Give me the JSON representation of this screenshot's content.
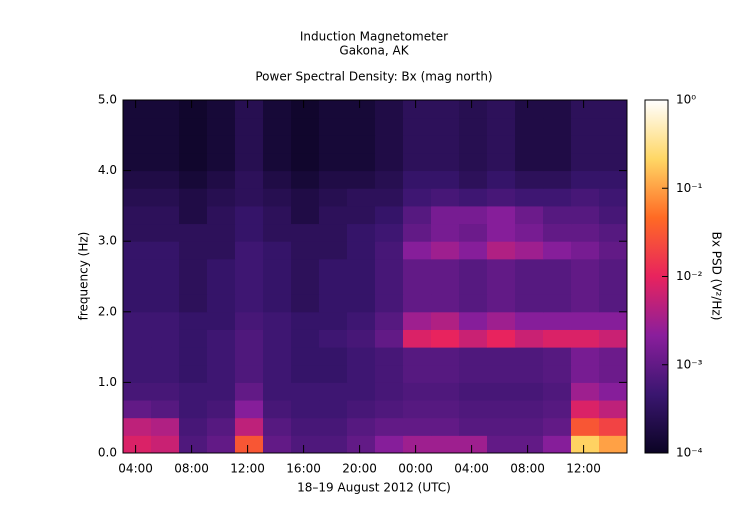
{
  "chart_data": {
    "type": "heatmap",
    "title": "Induction Magnetometer",
    "subtitle_1": "Gakona, AK",
    "subtitle_2": "Power Spectral Density: Bx (mag north)",
    "xlabel": "18–19 August 2012 (UTC)",
    "ylabel": "frequency (Hz)",
    "xlim": [
      3.1,
      39.1
    ],
    "ylim": [
      0,
      5
    ],
    "xticks": [
      {
        "value": 4,
        "label": "04:00"
      },
      {
        "value": 8,
        "label": "08:00"
      },
      {
        "value": 12,
        "label": "12:00"
      },
      {
        "value": 16,
        "label": "16:00"
      },
      {
        "value": 20,
        "label": "20:00"
      },
      {
        "value": 24,
        "label": "00:00"
      },
      {
        "value": 28,
        "label": "04:00"
      },
      {
        "value": 32,
        "label": "08:00"
      },
      {
        "value": 36,
        "label": "12:00"
      }
    ],
    "yticks": [
      {
        "value": 0,
        "label": "0.0"
      },
      {
        "value": 1,
        "label": "1.0"
      },
      {
        "value": 2,
        "label": "2.0"
      },
      {
        "value": 3,
        "label": "3.0"
      },
      {
        "value": 4,
        "label": "4.0"
      },
      {
        "value": 5,
        "label": "5.0"
      }
    ],
    "x_bins": [
      3.1,
      5.1,
      7.1,
      9.1,
      11.1,
      13.1,
      15.1,
      17.1,
      19.1,
      21.1,
      23.1,
      25.1,
      27.1,
      29.1,
      31.1,
      33.1,
      35.1,
      37.1,
      39.1
    ],
    "y_bins": [
      0,
      0.25,
      0.5,
      0.75,
      1.0,
      1.25,
      1.5,
      1.75,
      2.0,
      2.25,
      2.5,
      2.75,
      3.0,
      3.25,
      3.5,
      3.75,
      4.0,
      4.25,
      4.5,
      4.75,
      5.0
    ],
    "z": [
      [
        0.008,
        0.006,
        0.0007,
        0.001,
        0.03,
        0.001,
        0.0007,
        0.0007,
        0.001,
        0.002,
        0.003,
        0.003,
        0.003,
        0.001,
        0.001,
        0.002,
        0.2,
        0.1
      ],
      [
        0.005,
        0.004,
        0.0006,
        0.0008,
        0.005,
        0.0008,
        0.0006,
        0.0006,
        0.0008,
        0.001,
        0.001,
        0.001,
        0.0008,
        0.0008,
        0.0008,
        0.001,
        0.03,
        0.02
      ],
      [
        0.001,
        0.0008,
        0.0005,
        0.0006,
        0.002,
        0.0006,
        0.0005,
        0.0005,
        0.0006,
        0.0007,
        0.0008,
        0.0008,
        0.0007,
        0.0007,
        0.0007,
        0.0008,
        0.008,
        0.005
      ],
      [
        0.0006,
        0.0006,
        0.0005,
        0.0005,
        0.001,
        0.0005,
        0.0005,
        0.0005,
        0.0005,
        0.0006,
        0.0007,
        0.0007,
        0.0006,
        0.0006,
        0.0006,
        0.0007,
        0.003,
        0.002
      ],
      [
        0.0005,
        0.0005,
        0.0004,
        0.0005,
        0.0007,
        0.0005,
        0.0004,
        0.0004,
        0.0005,
        0.0006,
        0.0008,
        0.0008,
        0.0007,
        0.0007,
        0.0007,
        0.0008,
        0.0015,
        0.0012
      ],
      [
        0.0005,
        0.0005,
        0.0004,
        0.0005,
        0.0007,
        0.0005,
        0.0004,
        0.0004,
        0.0005,
        0.0006,
        0.0008,
        0.0008,
        0.0007,
        0.0007,
        0.0007,
        0.0008,
        0.0015,
        0.0012
      ],
      [
        0.0005,
        0.0005,
        0.0004,
        0.0005,
        0.0007,
        0.0005,
        0.0004,
        0.0005,
        0.0006,
        0.001,
        0.008,
        0.01,
        0.006,
        0.01,
        0.006,
        0.008,
        0.008,
        0.006
      ],
      [
        0.0005,
        0.0005,
        0.0004,
        0.0004,
        0.0006,
        0.0005,
        0.0004,
        0.0004,
        0.0005,
        0.0008,
        0.003,
        0.004,
        0.002,
        0.003,
        0.002,
        0.002,
        0.002,
        0.002
      ],
      [
        0.0004,
        0.0004,
        0.0003,
        0.0004,
        0.0005,
        0.0004,
        0.0003,
        0.0004,
        0.0004,
        0.0006,
        0.001,
        0.001,
        0.0008,
        0.001,
        0.0008,
        0.0008,
        0.001,
        0.0008
      ],
      [
        0.0004,
        0.0004,
        0.0003,
        0.0004,
        0.0005,
        0.0004,
        0.0003,
        0.0004,
        0.0004,
        0.0006,
        0.001,
        0.001,
        0.0008,
        0.001,
        0.0008,
        0.0008,
        0.001,
        0.0008
      ],
      [
        0.0004,
        0.0004,
        0.0003,
        0.0004,
        0.0005,
        0.0004,
        0.0003,
        0.0004,
        0.0004,
        0.0006,
        0.001,
        0.001,
        0.0008,
        0.001,
        0.0008,
        0.0008,
        0.001,
        0.0008
      ],
      [
        0.0004,
        0.0004,
        0.0003,
        0.0003,
        0.0005,
        0.0004,
        0.0003,
        0.0003,
        0.0004,
        0.0006,
        0.002,
        0.003,
        0.002,
        0.004,
        0.003,
        0.002,
        0.0015,
        0.001
      ],
      [
        0.0003,
        0.0003,
        0.0003,
        0.0003,
        0.0004,
        0.0003,
        0.0003,
        0.0003,
        0.0004,
        0.0005,
        0.001,
        0.0015,
        0.0012,
        0.002,
        0.0015,
        0.001,
        0.001,
        0.0008
      ],
      [
        0.0003,
        0.0003,
        0.0002,
        0.0003,
        0.0004,
        0.0003,
        0.0002,
        0.0003,
        0.0003,
        0.0004,
        0.0008,
        0.0015,
        0.0015,
        0.002,
        0.0012,
        0.0008,
        0.0008,
        0.0006
      ],
      [
        0.00025,
        0.00025,
        0.0002,
        0.00025,
        0.0003,
        0.00025,
        0.0002,
        0.00025,
        0.0003,
        0.0003,
        0.0005,
        0.0006,
        0.0005,
        0.0006,
        0.0005,
        0.0005,
        0.0006,
        0.0005
      ],
      [
        0.0002,
        0.0002,
        0.00015,
        0.0002,
        0.0003,
        0.0002,
        0.00015,
        0.0002,
        0.0002,
        0.00025,
        0.0004,
        0.0004,
        0.0003,
        0.0004,
        0.0003,
        0.0003,
        0.0004,
        0.0004
      ],
      [
        0.00015,
        0.00015,
        0.00012,
        0.00015,
        0.00025,
        0.00015,
        0.00012,
        0.00015,
        0.00015,
        0.0002,
        0.0003,
        0.0003,
        0.00025,
        0.0003,
        0.0002,
        0.0002,
        0.0003,
        0.0003
      ],
      [
        0.00015,
        0.00015,
        0.00012,
        0.00015,
        0.00025,
        0.00015,
        0.00012,
        0.00015,
        0.00015,
        0.0002,
        0.0003,
        0.0003,
        0.00025,
        0.0003,
        0.0002,
        0.0002,
        0.0003,
        0.0003
      ],
      [
        0.00015,
        0.00015,
        0.00012,
        0.00015,
        0.00025,
        0.00015,
        0.00012,
        0.00015,
        0.00015,
        0.0002,
        0.0003,
        0.0003,
        0.00025,
        0.0003,
        0.0002,
        0.0002,
        0.0003,
        0.0003
      ],
      [
        0.00015,
        0.00015,
        0.00012,
        0.00015,
        0.00025,
        0.00015,
        0.00012,
        0.00015,
        0.00015,
        0.0002,
        0.0003,
        0.0003,
        0.00025,
        0.0003,
        0.0002,
        0.0002,
        0.0003,
        0.0003
      ]
    ],
    "colormap": [
      "#0b0424",
      "#3a1670",
      "#8a1e9c",
      "#e8235e",
      "#ff6a24",
      "#ffd765",
      "#ffffff"
    ],
    "colorbar": {
      "label": "Bx PSD (V²/Hz)",
      "scale": "log",
      "lim": [
        0.0001,
        1
      ],
      "ticks": [
        {
          "value": 0.0001,
          "label": "10⁻⁴"
        },
        {
          "value": 0.001,
          "label": "10⁻³"
        },
        {
          "value": 0.01,
          "label": "10⁻²"
        },
        {
          "value": 0.1,
          "label": "10⁻¹"
        },
        {
          "value": 1,
          "label": "10⁰"
        }
      ]
    }
  }
}
